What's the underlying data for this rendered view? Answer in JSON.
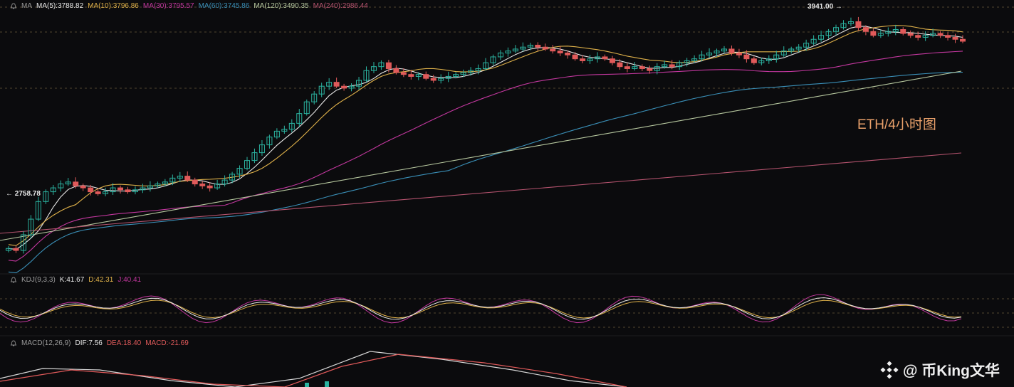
{
  "colors": {
    "background": "#0b0b0d",
    "up": "#2bb3a0",
    "down": "#e05a5a",
    "ma5": "#e8e8e8",
    "ma10": "#e0b24a",
    "ma30": "#c2379e",
    "ma60": "#3a8fb7",
    "ma120": "#b8c9a0",
    "ma240": "#b5536e",
    "grid_dash": "#6b5a3a"
  },
  "legends": {
    "ma_name": "MA",
    "ma5": "MA(5):3788.82",
    "ma10": "MA(10):3796.86",
    "ma30": "MA(30):3795.57",
    "ma60": "MA(60):3745.86",
    "ma120": "MA(120):3490.35",
    "ma240": "MA(240):2986.44",
    "kdj_name": "KDJ(9,3,3)",
    "kdj_k": "K:41.67",
    "kdj_d": "D:42.31",
    "kdj_j": "J:40.41",
    "macd_name": "MACD(12,26,9)",
    "macd_dif": "DIF:7.56",
    "macd_dea": "DEA:18.40",
    "macd_macd": "MACD:-21.69"
  },
  "labels": {
    "high": "3941.00 →",
    "low": "← 2758.78",
    "annotation": "ETH/4小时图",
    "watermark": "@ 币King文华"
  },
  "chart_data": {
    "type": "candlestick",
    "title": "",
    "high_label": 3941.0,
    "low_label": 2758.78,
    "price_range": [
      2640,
      3990
    ],
    "indicators": [
      "MA(5)",
      "MA(10)",
      "MA(30)",
      "MA(60)",
      "MA(120)",
      "MA(240)",
      "KDJ(9,3,3)",
      "MACD(12,26,9)"
    ],
    "close_path": [
      2770,
      2760,
      2840,
      2920,
      3010,
      3060,
      3080,
      3100,
      3110,
      3090,
      3080,
      3060,
      3050,
      3060,
      3080,
      3070,
      3060,
      3070,
      3080,
      3090,
      3100,
      3110,
      3130,
      3140,
      3120,
      3100,
      3090,
      3080,
      3100,
      3120,
      3150,
      3180,
      3220,
      3260,
      3300,
      3340,
      3370,
      3380,
      3410,
      3460,
      3520,
      3560,
      3600,
      3620,
      3600,
      3590,
      3600,
      3630,
      3680,
      3700,
      3720,
      3690,
      3670,
      3660,
      3650,
      3660,
      3640,
      3630,
      3640,
      3650,
      3660,
      3670,
      3680,
      3690,
      3720,
      3750,
      3770,
      3780,
      3790,
      3800,
      3810,
      3800,
      3790,
      3780,
      3770,
      3760,
      3740,
      3730,
      3740,
      3750,
      3740,
      3720,
      3700,
      3690,
      3700,
      3690,
      3680,
      3700,
      3710,
      3700,
      3720,
      3730,
      3740,
      3760,
      3770,
      3780,
      3790,
      3770,
      3760,
      3740,
      3720,
      3730,
      3740,
      3760,
      3780,
      3790,
      3800,
      3820,
      3840,
      3860,
      3880,
      3900,
      3920,
      3930,
      3900,
      3880,
      3860,
      3870,
      3880,
      3890,
      3870,
      3860,
      3850,
      3860,
      3870,
      3860,
      3850,
      3840,
      3830
    ]
  }
}
